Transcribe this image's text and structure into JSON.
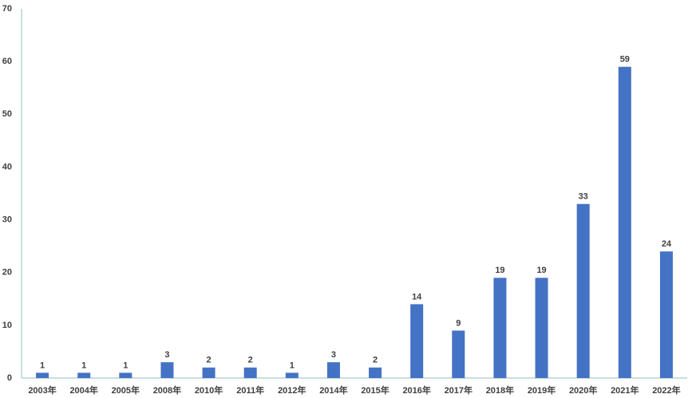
{
  "chart_data": {
    "type": "bar",
    "categories": [
      "2003年",
      "2004年",
      "2005年",
      "2008年",
      "2010年",
      "2011年",
      "2012年",
      "2014年",
      "2015年",
      "2016年",
      "2017年",
      "2018年",
      "2019年",
      "2020年",
      "2021年",
      "2022年"
    ],
    "values": [
      1,
      1,
      1,
      3,
      2,
      2,
      1,
      3,
      2,
      14,
      9,
      19,
      19,
      33,
      59,
      24
    ],
    "color": "#4472c4",
    "ylim": [
      0,
      70
    ],
    "yticks": [
      0,
      10,
      20,
      30,
      40,
      50,
      60,
      70
    ],
    "grid": false
  }
}
